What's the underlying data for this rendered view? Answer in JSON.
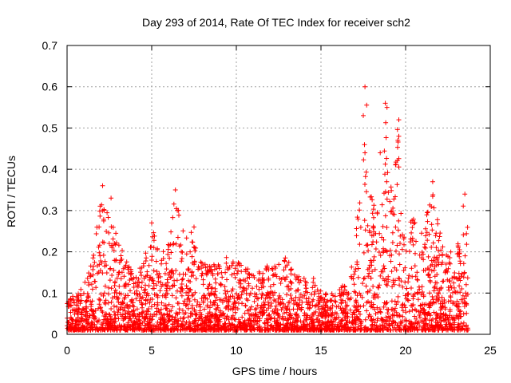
{
  "chart_data": {
    "type": "scatter",
    "title": "Day 293 of 2014, Rate Of TEC Index for receiver sch2",
    "xlabel": "GPS time / hours",
    "ylabel": "ROTI / TECUs",
    "xlim": [
      0,
      25
    ],
    "ylim": [
      0,
      0.7
    ],
    "xticks": [
      0,
      5,
      10,
      15,
      20,
      25
    ],
    "yticks": [
      0,
      0.1,
      0.2,
      0.3,
      0.4,
      0.5,
      0.6,
      0.7
    ],
    "marker": "+",
    "marker_color": "#ff0000",
    "grid": true,
    "data_range_x": [
      0,
      23.7
    ],
    "envelope_note": "dense cloud of ROTI points; upper envelope (hour, ROTI) approximates the visible peaks",
    "envelope": [
      [
        0.0,
        0.1
      ],
      [
        0.5,
        0.09
      ],
      [
        1.0,
        0.12
      ],
      [
        1.5,
        0.18
      ],
      [
        2.0,
        0.36
      ],
      [
        2.5,
        0.33
      ],
      [
        3.0,
        0.23
      ],
      [
        3.5,
        0.18
      ],
      [
        4.0,
        0.14
      ],
      [
        4.5,
        0.18
      ],
      [
        5.0,
        0.27
      ],
      [
        5.5,
        0.19
      ],
      [
        6.0,
        0.23
      ],
      [
        6.4,
        0.35
      ],
      [
        7.0,
        0.23
      ],
      [
        7.5,
        0.26
      ],
      [
        8.0,
        0.17
      ],
      [
        8.5,
        0.17
      ],
      [
        9.0,
        0.17
      ],
      [
        9.5,
        0.19
      ],
      [
        10.0,
        0.18
      ],
      [
        10.5,
        0.18
      ],
      [
        11.0,
        0.16
      ],
      [
        11.5,
        0.16
      ],
      [
        12.0,
        0.17
      ],
      [
        12.5,
        0.17
      ],
      [
        13.0,
        0.19
      ],
      [
        13.5,
        0.14
      ],
      [
        14.0,
        0.15
      ],
      [
        14.5,
        0.14
      ],
      [
        15.0,
        0.12
      ],
      [
        15.5,
        0.1
      ],
      [
        16.0,
        0.12
      ],
      [
        16.5,
        0.12
      ],
      [
        17.0,
        0.22
      ],
      [
        17.5,
        0.44
      ],
      [
        17.7,
        0.6
      ],
      [
        18.0,
        0.33
      ],
      [
        18.5,
        0.3
      ],
      [
        18.8,
        0.56
      ],
      [
        19.0,
        0.4
      ],
      [
        19.3,
        0.35
      ],
      [
        19.5,
        0.52
      ],
      [
        19.8,
        0.28
      ],
      [
        20.0,
        0.22
      ],
      [
        20.5,
        0.31
      ],
      [
        21.0,
        0.26
      ],
      [
        21.5,
        0.37
      ],
      [
        22.0,
        0.25
      ],
      [
        22.5,
        0.22
      ],
      [
        23.0,
        0.2
      ],
      [
        23.5,
        0.34
      ],
      [
        23.7,
        0.25
      ]
    ],
    "notable_points": [
      [
        2.1,
        0.36
      ],
      [
        2.6,
        0.33
      ],
      [
        5.0,
        0.27
      ],
      [
        6.4,
        0.35
      ],
      [
        7.5,
        0.26
      ],
      [
        17.6,
        0.6
      ],
      [
        17.5,
        0.53
      ],
      [
        18.8,
        0.56
      ],
      [
        18.9,
        0.55
      ],
      [
        19.6,
        0.52
      ],
      [
        19.6,
        0.48
      ],
      [
        18.5,
        0.44
      ],
      [
        17.6,
        0.44
      ],
      [
        21.6,
        0.37
      ],
      [
        23.5,
        0.34
      ]
    ]
  }
}
